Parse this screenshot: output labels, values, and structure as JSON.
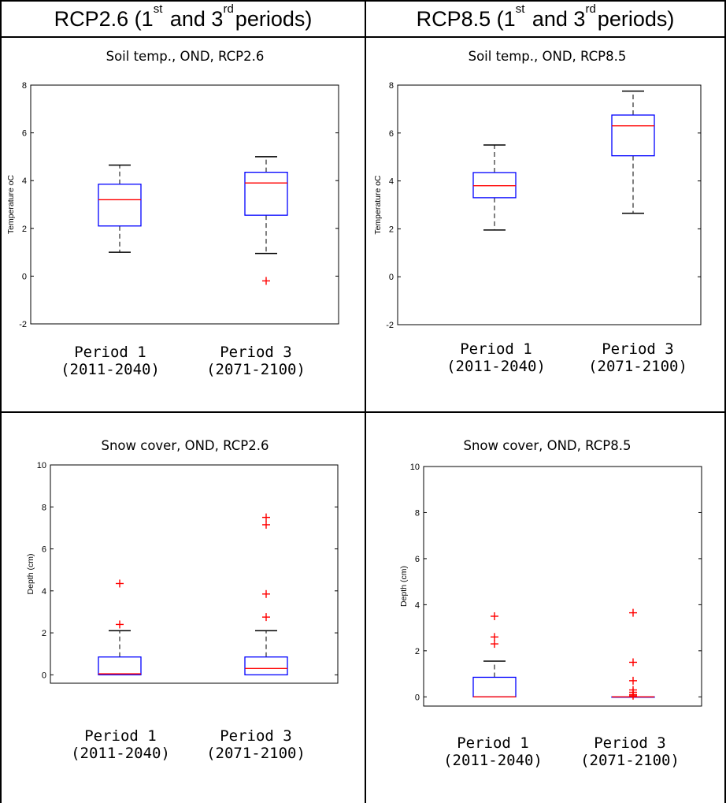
{
  "headers": {
    "rcp26": {
      "main": "RCP2.6 (1",
      "sup1": "st",
      "mid": " and 3",
      "sup2": "rd",
      "end": "periods)"
    },
    "rcp85": {
      "main": "RCP8.5 (1",
      "sup1": "st",
      "mid": " and 3",
      "sup2": "rd",
      "end": "periods)"
    }
  },
  "chart_data": [
    {
      "type": "box",
      "title": "Soil temp., OND, RCP2.6",
      "ylabel": "Temperature oC",
      "ylim": [
        -2,
        8
      ],
      "yticks": [
        -2,
        0,
        2,
        4,
        6,
        8
      ],
      "categories": [
        "Period 1\n(2011-2040)",
        "Period 3\n(2071-2100)"
      ],
      "category_lines": [
        [
          "Period 1",
          "(2011-2040)"
        ],
        [
          "Period 3",
          "(2071-2100)"
        ]
      ],
      "boxes": [
        {
          "whisker_low": 1.0,
          "q1": 2.1,
          "median": 3.2,
          "q3": 3.85,
          "whisker_high": 4.65,
          "outliers": []
        },
        {
          "whisker_low": 0.95,
          "q1": 2.55,
          "median": 3.9,
          "q3": 4.35,
          "whisker_high": 5.0,
          "outliers": [
            -0.2
          ]
        }
      ]
    },
    {
      "type": "box",
      "title": "Soil temp., OND, RCP8.5",
      "ylabel": "Temperature oC",
      "ylim": [
        -2,
        8
      ],
      "yticks": [
        -2,
        0,
        2,
        4,
        6,
        8
      ],
      "categories": [
        "Period 1\n(2011-2040)",
        "Period 3\n(2071-2100)"
      ],
      "category_lines": [
        [
          "Period 1",
          "(2011-2040)"
        ],
        [
          "Period 3",
          "(2071-2100)"
        ]
      ],
      "boxes": [
        {
          "whisker_low": 1.95,
          "q1": 3.3,
          "median": 3.8,
          "q3": 4.35,
          "whisker_high": 5.5,
          "outliers": []
        },
        {
          "whisker_low": 2.65,
          "q1": 5.05,
          "median": 6.3,
          "q3": 6.75,
          "whisker_high": 7.75,
          "outliers": []
        }
      ]
    },
    {
      "type": "box",
      "title": "Snow cover, OND, RCP2.6",
      "ylabel": "Depth (cm)",
      "ylim": [
        -0.4,
        10
      ],
      "yticks": [
        0,
        2,
        4,
        6,
        8,
        10
      ],
      "categories": [
        "Period 1\n(2011-2040)",
        "Period 3\n(2071-2100)"
      ],
      "category_lines": [
        [
          "Period 1",
          "(2011-2040)"
        ],
        [
          "Period 3",
          "(2071-2100)"
        ]
      ],
      "boxes": [
        {
          "whisker_low": 0.0,
          "q1": 0.0,
          "median": 0.05,
          "q3": 0.85,
          "whisker_high": 2.1,
          "outliers": [
            2.4,
            4.35
          ]
        },
        {
          "whisker_low": 0.0,
          "q1": 0.0,
          "median": 0.3,
          "q3": 0.85,
          "whisker_high": 2.1,
          "outliers": [
            2.75,
            3.85,
            7.15,
            7.5
          ]
        }
      ]
    },
    {
      "type": "box",
      "title": "Snow cover, OND, RCP8.5",
      "ylabel": "Depth (cm)",
      "ylim": [
        -0.4,
        10
      ],
      "yticks": [
        0,
        2,
        4,
        6,
        8,
        10
      ],
      "categories": [
        "Period 1\n(2011-2040)",
        "Period 3\n(2071-2100)"
      ],
      "category_lines": [
        [
          "Period 1",
          "(2011-2040)"
        ],
        [
          "Period 3",
          "(2071-2100)"
        ]
      ],
      "boxes": [
        {
          "whisker_low": 0.0,
          "q1": 0.0,
          "median": 0.0,
          "q3": 0.85,
          "whisker_high": 1.55,
          "outliers": [
            2.3,
            2.6,
            3.5
          ]
        },
        {
          "whisker_low": 0.0,
          "q1": 0.0,
          "median": 0.0,
          "q3": 0.0,
          "whisker_high": 0.0,
          "outliers": [
            0.05,
            0.1,
            0.2,
            0.3,
            0.7,
            1.5,
            3.65
          ]
        }
      ]
    }
  ],
  "colors": {
    "box": "#0000ff",
    "median": "#ff0000",
    "outlier": "#ff0000",
    "whisker": "#000000"
  }
}
